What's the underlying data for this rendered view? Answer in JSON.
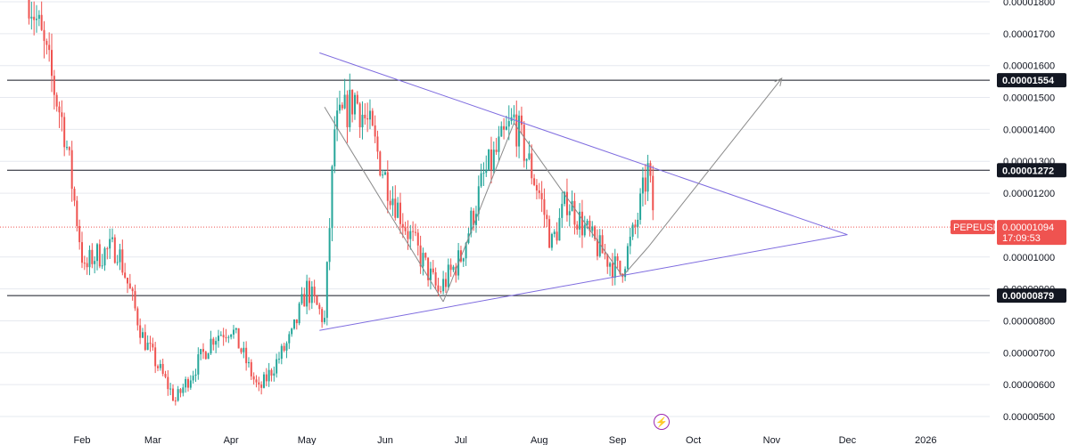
{
  "symbol": "PEPEUSDT",
  "countdown": "17:09:53",
  "colors": {
    "up": "#26a69a",
    "down": "#ef5350",
    "pattern": "#7e6bdf",
    "forecast": "#8a8a8a",
    "level": "#131722",
    "grid": "#e6e9ef"
  },
  "icons": {
    "bolt": "lightning-bolt-icon"
  },
  "chart_data": {
    "type": "candlestick",
    "title": "",
    "xlabel": "",
    "ylabel": "",
    "x_labels": [
      "Feb",
      "Mar",
      "Apr",
      "May",
      "Jun",
      "Jul",
      "Aug",
      "Sep",
      "Oct",
      "Nov",
      "Dec",
      "2026"
    ],
    "y_ticks": [
      "0.00001800",
      "0.00001700",
      "0.00001600",
      "0.00001500",
      "0.00001400",
      "0.00001300",
      "0.00001200",
      "0.00001000",
      "0.00000900",
      "0.00000800",
      "0.00000700",
      "0.00000600",
      "0.00000500"
    ],
    "ylim": [
      4.9e-06,
      1.81e-05
    ],
    "horizontal_levels": [
      {
        "value": 1.554e-05,
        "label": "0.00001554"
      },
      {
        "value": 1.272e-05,
        "label": "0.00001272"
      },
      {
        "value": 8.79e-06,
        "label": "0.00000879"
      }
    ],
    "last_price": {
      "value": 1.094e-05,
      "label": "0.00001094"
    },
    "anchors": [
      {
        "date": "2025-01-11",
        "price": 1.83e-05
      },
      {
        "date": "2025-01-18",
        "price": 1.62e-05
      },
      {
        "date": "2025-01-25",
        "price": 1.4e-05
      },
      {
        "date": "2025-02-02",
        "price": 9.5e-06
      },
      {
        "date": "2025-02-05",
        "price": 1e-05
      },
      {
        "date": "2025-02-15",
        "price": 1.03e-05
      },
      {
        "date": "2025-02-25",
        "price": 7.5e-06
      },
      {
        "date": "2025-03-10",
        "price": 5.5e-06
      },
      {
        "date": "2025-03-25",
        "price": 7.5e-06
      },
      {
        "date": "2025-04-01",
        "price": 7.8e-06
      },
      {
        "date": "2025-04-12",
        "price": 5.8e-06
      },
      {
        "date": "2025-04-25",
        "price": 7.5e-06
      },
      {
        "date": "2025-05-01",
        "price": 9e-06
      },
      {
        "date": "2025-05-08",
        "price": 8e-06
      },
      {
        "date": "2025-05-12",
        "price": 1.4e-05
      },
      {
        "date": "2025-05-20",
        "price": 1.5e-05
      },
      {
        "date": "2025-05-26",
        "price": 1.4e-05
      },
      {
        "date": "2025-06-01",
        "price": 1.25e-05
      },
      {
        "date": "2025-06-10",
        "price": 1.08e-05
      },
      {
        "date": "2025-06-22",
        "price": 8.9e-06
      },
      {
        "date": "2025-07-01",
        "price": 1e-05
      },
      {
        "date": "2025-07-10",
        "price": 1.25e-05
      },
      {
        "date": "2025-07-22",
        "price": 1.43e-05
      },
      {
        "date": "2025-08-01",
        "price": 1.2e-05
      },
      {
        "date": "2025-08-06",
        "price": 1.04e-05
      },
      {
        "date": "2025-08-12",
        "price": 1.18e-05
      },
      {
        "date": "2025-08-22",
        "price": 1.05e-05
      },
      {
        "date": "2025-09-02",
        "price": 9.5e-06
      },
      {
        "date": "2025-09-08",
        "price": 1.09e-05
      },
      {
        "date": "2025-09-13",
        "price": 1.27e-05
      },
      {
        "date": "2025-09-16",
        "price": 1.094e-05
      }
    ],
    "triangle": {
      "upper": [
        {
          "date": "2025-05-06",
          "price": 1.64e-05
        },
        {
          "date": "2025-12-01",
          "price": 1.07e-05
        }
      ],
      "lower": [
        {
          "date": "2025-05-06",
          "price": 7.7e-06
        },
        {
          "date": "2025-12-01",
          "price": 1.07e-05
        }
      ]
    },
    "forecast_path": [
      {
        "date": "2025-05-08",
        "price": 1.47e-05
      },
      {
        "date": "2025-06-24",
        "price": 8.6e-06
      },
      {
        "date": "2025-07-22",
        "price": 1.42e-05
      },
      {
        "date": "2025-09-03",
        "price": 9.4e-06
      },
      {
        "date": "2025-09-13",
        "price": 1.03e-05
      },
      {
        "date": "2025-11-05",
        "price": 1.56e-05
      }
    ]
  }
}
